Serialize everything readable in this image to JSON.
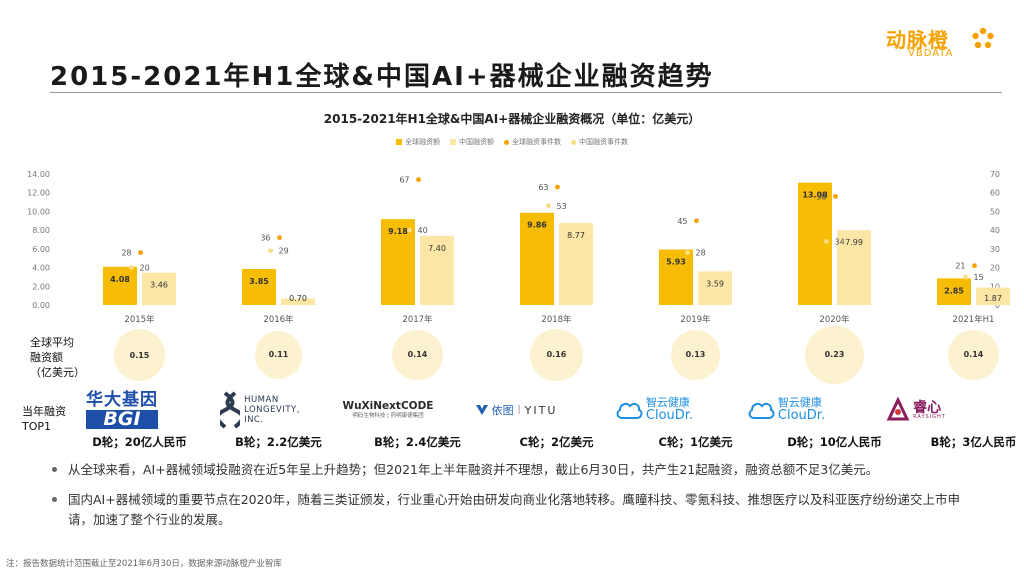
{
  "brand": {
    "name_cn": "动脉橙",
    "name_en": "VBDATA",
    "color": "#f5a100"
  },
  "page_title": "2015-2021年H1全球&中国AI+器械企业融资趋势",
  "chart_data": {
    "type": "bar",
    "title": "2015-2021年H1全球&中国AI+器械企业融资概况（单位：亿美元）",
    "categories": [
      "2015年",
      "2016年",
      "2017年",
      "2018年",
      "2019年",
      "2020年",
      "2021年H1"
    ],
    "series": [
      {
        "name": "全球融资额",
        "kind": "bar",
        "axis": "left",
        "color": "#f7bd05",
        "values": [
          4.08,
          3.85,
          9.18,
          9.86,
          5.93,
          13.08,
          2.85
        ],
        "labels": [
          "4.08",
          "3.85",
          "9.18",
          "9.86",
          "5.93",
          "13.08",
          "2.85"
        ]
      },
      {
        "name": "中国融资额",
        "kind": "bar",
        "axis": "left",
        "color": "#fbe6a6",
        "values": [
          3.46,
          0.7,
          7.4,
          8.77,
          3.59,
          7.99,
          1.87
        ],
        "labels": [
          "3.46",
          "0.70",
          "7.40",
          "8.77",
          "3.59",
          "7.99",
          "1.87"
        ]
      },
      {
        "name": "全球融资事件数",
        "kind": "point",
        "axis": "right",
        "color": "#f5a100",
        "values": [
          28,
          36,
          67,
          63,
          45,
          58,
          21
        ]
      },
      {
        "name": "中国融资事件数",
        "kind": "point",
        "axis": "right",
        "color": "#f9dc86",
        "values": [
          20,
          29,
          40,
          53,
          28,
          34,
          15
        ]
      }
    ],
    "y_left": {
      "min": 0,
      "max": 14,
      "ticks": [
        "0.00",
        "2.00",
        "4.00",
        "6.00",
        "8.00",
        "10.00",
        "12.00",
        "14.00"
      ]
    },
    "y_right": {
      "min": 0,
      "max": 70,
      "ticks": [
        "0",
        "10",
        "20",
        "30",
        "40",
        "50",
        "60",
        "70"
      ]
    },
    "legend_position": "top-center",
    "avg_row_label": "全球平均融资额（亿美元）",
    "avg_values": [
      0.15,
      0.11,
      0.14,
      0.16,
      0.13,
      0.23,
      0.14
    ]
  },
  "avg_row": {
    "label_lines": [
      "全球平均",
      "融资额",
      "（亿美元）"
    ],
    "values": [
      "0.15",
      "0.11",
      "0.14",
      "0.16",
      "0.13",
      "0.23",
      "0.14"
    ]
  },
  "top1_row": {
    "label_lines": [
      "当年融资",
      "TOP1"
    ],
    "companies": [
      {
        "name_line1": "华大基因",
        "name_line2": "BGI",
        "round": "D轮；20亿人民币",
        "color": "#1e4fa8"
      },
      {
        "name_line1": "HUMAN",
        "name_line2": "LONGEVITY,",
        "name_line3": "INC.",
        "round": "B轮；2.2亿美元",
        "color": "#2b3a4f"
      },
      {
        "name_line1": "WuXiNextCODE",
        "name_line2": "明码生物科技 | 药明康德集团",
        "round": "B轮；2.4亿美元",
        "color": "#2b2b2b"
      },
      {
        "name_line1": "依图",
        "name_line2": "YITU",
        "round": "C轮；2亿美元",
        "color": "#1f5fb0"
      },
      {
        "name_line1": "智云健康",
        "name_line2": "ClouDr.",
        "round": "C轮；1亿美元",
        "color": "#1d8fe0"
      },
      {
        "name_line1": "智云健康",
        "name_line2": "ClouDr.",
        "round": "D轮；10亿人民币",
        "color": "#1d8fe0"
      },
      {
        "name_line1": "睿心",
        "name_line2": "RAYSIGHT",
        "round": "B轮；3亿人民币",
        "color": "#8b1d5e"
      }
    ]
  },
  "bullets": [
    "从全球来看，AI+器械领域投融资在近5年呈上升趋势；但2021年上半年融资并不理想，截止6月30日，共产生21起融资，融资总额不足3亿美元。",
    "国内AI+器械领域的重要节点在2020年，随着三类证颁发，行业重心开始由研发向商业化落地转移。鹰瞳科技、零氪科技、推想医疗以及科亚医疗纷纷递交上市申请，加速了整个行业的发展。"
  ],
  "note": "注：报告数据统计范围截止至2021年6月30日，数据来源动脉橙产业智库"
}
